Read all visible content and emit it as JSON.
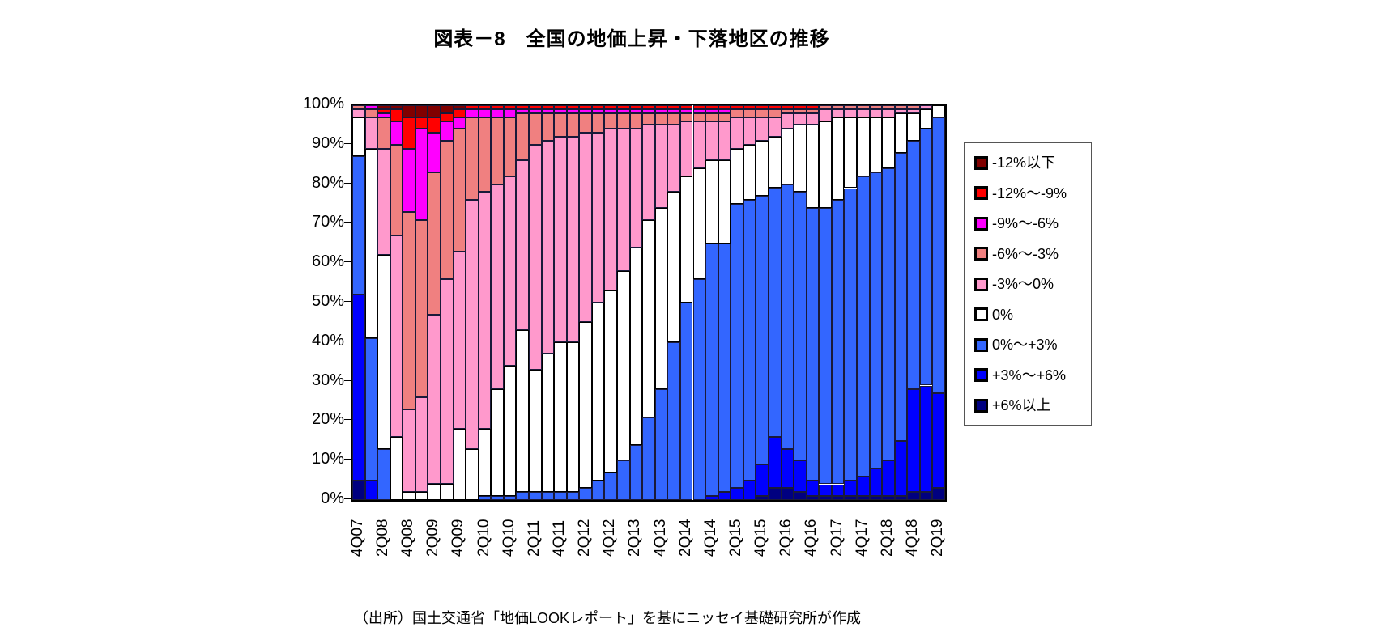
{
  "title": "図表－8　全国の地価上昇・下落地区の推移",
  "source_note": "（出所）国土交通省「地価LOOKレポート」を基にニッセイ基礎研究所が作成",
  "y_axis": {
    "tick_labels": [
      "0%",
      "10%",
      "20%",
      "30%",
      "40%",
      "50%",
      "60%",
      "70%",
      "80%",
      "90%",
      "100%"
    ]
  },
  "chart_data": {
    "type": "bar",
    "subtype": "stacked-100-percent",
    "title": "図表－8　全国の地価上昇・下落地区の推移",
    "xlabel": "",
    "ylabel": "",
    "ylim": [
      0,
      100
    ],
    "grid": false,
    "legend_position": "right",
    "categories": [
      "4Q07",
      "1Q08",
      "2Q08",
      "3Q08",
      "4Q08",
      "1Q09",
      "2Q09",
      "3Q09",
      "4Q09",
      "1Q10",
      "2Q10",
      "3Q10",
      "4Q10",
      "1Q11",
      "2Q11",
      "3Q11",
      "4Q11",
      "1Q12",
      "2Q12",
      "3Q12",
      "4Q12",
      "1Q13",
      "2Q13",
      "3Q13",
      "4Q13",
      "1Q14",
      "2Q14",
      "3Q14",
      "4Q14",
      "1Q15",
      "2Q15",
      "3Q15",
      "4Q15",
      "1Q16",
      "2Q16",
      "3Q16",
      "4Q16",
      "1Q17",
      "2Q17",
      "3Q17",
      "4Q17",
      "1Q18",
      "2Q18",
      "3Q18",
      "4Q18",
      "1Q19",
      "2Q19"
    ],
    "x_tick_labels_shown": [
      "4Q07",
      "2Q08",
      "4Q08",
      "2Q09",
      "4Q09",
      "2Q10",
      "4Q10",
      "2Q11",
      "4Q11",
      "2Q12",
      "4Q12",
      "2Q13",
      "4Q13",
      "2Q14",
      "4Q14",
      "2Q15",
      "4Q15",
      "2Q16",
      "4Q16",
      "2Q17",
      "4Q17",
      "2Q18",
      "4Q18",
      "2Q19"
    ],
    "series_note": "values are share of districts (%), listed in legend order (top of stack first); stacking bottom starts with +6%以上",
    "series": [
      {
        "name": "-12%以下",
        "color": "#800000",
        "values": [
          0,
          0,
          1,
          1,
          3,
          3,
          3,
          2,
          1,
          0,
          0,
          0,
          0,
          0,
          0,
          0,
          0,
          0,
          0,
          0,
          0,
          0,
          0,
          0,
          0,
          0,
          0,
          0,
          0,
          0,
          0,
          0,
          0,
          0,
          0,
          0,
          0,
          0,
          0,
          0,
          0,
          0,
          0,
          0,
          0,
          0,
          0
        ]
      },
      {
        "name": "-12%～-9%",
        "color": "#ff0000",
        "values": [
          0,
          0,
          1,
          3,
          8,
          3,
          4,
          2,
          2,
          1,
          1,
          1,
          1,
          1,
          1,
          1,
          1,
          1,
          1,
          1,
          1,
          1,
          1,
          1,
          1,
          1,
          1,
          1,
          1,
          1,
          1,
          1,
          1,
          1,
          1,
          1,
          1,
          0,
          0,
          0,
          0,
          0,
          0,
          0,
          0,
          0,
          0
        ]
      },
      {
        "name": "-9%～-6%",
        "color": "#ff00ff",
        "values": [
          0,
          1,
          1,
          6,
          16,
          23,
          10,
          5,
          3,
          2,
          2,
          2,
          2,
          1,
          1,
          1,
          1,
          1,
          1,
          1,
          1,
          1,
          1,
          1,
          1,
          1,
          1,
          1,
          1,
          1,
          0,
          0,
          0,
          0,
          0,
          0,
          0,
          0,
          0,
          0,
          0,
          0,
          0,
          0,
          0,
          0,
          0
        ]
      },
      {
        "name": "-6%～-3%",
        "color": "#f08080",
        "values": [
          1,
          2,
          8,
          23,
          50,
          45,
          36,
          35,
          31,
          21,
          19,
          17,
          15,
          12,
          8,
          7,
          6,
          6,
          5,
          5,
          4,
          4,
          4,
          3,
          3,
          3,
          2,
          2,
          2,
          2,
          2,
          2,
          2,
          2,
          1,
          1,
          1,
          1,
          1,
          1,
          1,
          1,
          1,
          1,
          1,
          0,
          0
        ]
      },
      {
        "name": "-3%～0%",
        "color": "#ff99cc",
        "values": [
          2,
          8,
          27,
          51,
          21,
          24,
          43,
          52,
          45,
          63,
          60,
          52,
          48,
          43,
          57,
          54,
          52,
          52,
          48,
          43,
          41,
          36,
          30,
          24,
          21,
          17,
          14,
          12,
          10,
          10,
          8,
          7,
          6,
          5,
          4,
          3,
          3,
          3,
          2,
          2,
          2,
          2,
          2,
          1,
          1,
          1,
          0
        ]
      },
      {
        "name": "0%",
        "color": "#ffffff",
        "values": [
          10,
          48,
          49,
          16,
          2,
          2,
          4,
          4,
          18,
          13,
          17,
          27,
          33,
          41,
          31,
          35,
          38,
          38,
          42,
          45,
          46,
          48,
          50,
          50,
          46,
          38,
          32,
          28,
          21,
          21,
          14,
          14,
          14,
          13,
          14,
          17,
          21,
          22,
          21,
          18,
          15,
          14,
          13,
          10,
          7,
          5,
          3
        ]
      },
      {
        "name": "0%～+3%",
        "color": "#3366ff",
        "values": [
          35,
          36,
          13,
          0,
          0,
          0,
          0,
          0,
          0,
          0,
          1,
          1,
          1,
          2,
          2,
          2,
          2,
          2,
          3,
          5,
          7,
          10,
          14,
          21,
          28,
          40,
          50,
          56,
          64,
          63,
          72,
          71,
          68,
          63,
          67,
          68,
          69,
          70,
          72,
          74,
          76,
          75,
          74,
          73,
          63,
          65,
          70
        ]
      },
      {
        "name": "+3%～+6%",
        "color": "#0000ff",
        "values": [
          47,
          5,
          0,
          0,
          0,
          0,
          0,
          0,
          0,
          0,
          0,
          0,
          0,
          0,
          0,
          0,
          0,
          0,
          0,
          0,
          0,
          0,
          0,
          0,
          0,
          0,
          0,
          0,
          1,
          2,
          3,
          5,
          8,
          13,
          10,
          8,
          4,
          3,
          3,
          4,
          5,
          7,
          9,
          14,
          26,
          27,
          24
        ]
      },
      {
        "name": "+6%以上",
        "color": "#000080",
        "values": [
          5,
          0,
          0,
          0,
          0,
          0,
          0,
          0,
          0,
          0,
          0,
          0,
          0,
          0,
          0,
          0,
          0,
          0,
          0,
          0,
          0,
          0,
          0,
          0,
          0,
          0,
          0,
          0,
          0,
          0,
          0,
          0,
          1,
          3,
          3,
          2,
          1,
          1,
          1,
          1,
          1,
          1,
          1,
          1,
          2,
          2,
          3
        ]
      }
    ]
  }
}
